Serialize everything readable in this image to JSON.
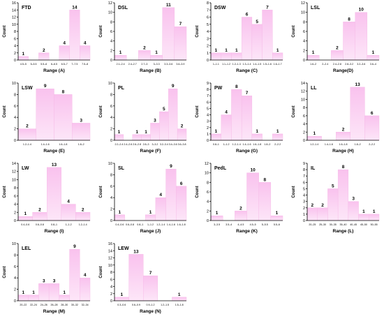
{
  "bar_color": "#f9c2ee",
  "bar_color_light": "#fde6f8",
  "chart_data": [
    {
      "type": "bar",
      "label": "FTD",
      "ylabel": "Count",
      "xlabel": "Range  (A)",
      "ylim": [
        0,
        16
      ],
      "yticks": [
        0,
        2,
        4,
        6,
        8,
        10,
        12,
        14,
        16
      ],
      "categories": [
        "4.5–5",
        "5–5.5",
        "5.5–6",
        "6–6.5",
        "6.5–7",
        "7–7.5",
        "7.5–8"
      ],
      "values": [
        1,
        0,
        2,
        0,
        4,
        14,
        4
      ]
    },
    {
      "type": "bar",
      "label": "DSL",
      "ylabel": "Count",
      "xlabel": "Range  (B)",
      "ylim": [
        0,
        12
      ],
      "yticks": [
        0,
        2,
        4,
        6,
        8,
        10,
        12
      ],
      "categories": [
        "2.1–2.4",
        "2.4–2.7",
        "2.7–3",
        "3–3.3",
        "3.3–3.6",
        "3.6–3.9"
      ],
      "values": [
        1,
        0,
        2,
        1,
        11,
        7
      ]
    },
    {
      "type": "bar",
      "label": "DSW",
      "ylabel": "Count",
      "xlabel": "Range  (C)",
      "ylim": [
        0,
        8
      ],
      "yticks": [
        0,
        1,
        2,
        3,
        4,
        5,
        6,
        7,
        8
      ],
      "categories": [
        "1–1.1",
        "1.1–1.2",
        "1.2–1.3",
        "1.3–1.4",
        "1.4–1.5",
        "1.5–1.6",
        "1.6–1.7"
      ],
      "values": [
        1,
        1,
        1,
        6,
        5,
        7,
        1
      ]
    },
    {
      "type": "bar",
      "label": "LSL",
      "ylabel": "Count",
      "xlabel": "Range(D)",
      "ylim": [
        0,
        12
      ],
      "yticks": [
        0,
        2,
        4,
        6,
        8,
        10,
        12
      ],
      "categories": [
        "1.6–2",
        "2–2.4",
        "2.4–2.8",
        "2.8–3.2",
        "3.2–3.6",
        "3.6–4"
      ],
      "values": [
        1,
        0,
        2,
        8,
        10,
        1
      ]
    },
    {
      "type": "bar",
      "label": "LSW",
      "ylabel": "Count",
      "xlabel": "Range  (E)",
      "ylim": [
        0,
        10
      ],
      "yticks": [
        0,
        2,
        4,
        6,
        8,
        10
      ],
      "categories": [
        "1.2–1.4",
        "1.4–1.6",
        "1.6–1.8",
        "1.8–2"
      ],
      "values": [
        2,
        9,
        8,
        3
      ]
    },
    {
      "type": "bar",
      "label": "PL",
      "ylabel": "Count",
      "xlabel": "Range  (F)",
      "ylim": [
        0,
        10
      ],
      "yticks": [
        0,
        2,
        4,
        6,
        8,
        10
      ],
      "categories": [
        "2.2–2.4",
        "2.4–2.6",
        "2.6–2.8",
        "2.8–3",
        "3–3.2",
        "3.2–3.4",
        "3.4–3.6",
        "3.6–3.8"
      ],
      "values": [
        1,
        0,
        1,
        1,
        3,
        5,
        9,
        2
      ]
    },
    {
      "type": "bar",
      "label": "PW",
      "ylabel": "Count",
      "xlabel": "Range  (G)",
      "ylim": [
        0,
        9
      ],
      "yticks": [
        0,
        1,
        2,
        3,
        4,
        5,
        6,
        7,
        8,
        9
      ],
      "categories": [
        "0.8–1",
        "1–1.2",
        "1.2–1.4",
        "1.4–1.6",
        "1.6–1.8",
        "1.8–2",
        "2–2.2"
      ],
      "values": [
        1,
        4,
        8,
        7,
        1,
        0,
        1
      ]
    },
    {
      "type": "bar",
      "label": "LL",
      "ylabel": "Count",
      "xlabel": "Range  (H)",
      "ylim": [
        0,
        14
      ],
      "yticks": [
        0,
        2,
        4,
        6,
        8,
        10,
        12,
        14
      ],
      "categories": [
        "1.2–1.4",
        "1.4–1.6",
        "1.6–1.8",
        "1.8–2",
        "2–2.2"
      ],
      "values": [
        1,
        0,
        2,
        13,
        6
      ]
    },
    {
      "type": "bar",
      "label": "LW",
      "ylabel": "Count",
      "xlabel": "Range  (I)",
      "ylim": [
        0,
        14
      ],
      "yticks": [
        0,
        2,
        4,
        6,
        8,
        10,
        12,
        14
      ],
      "categories": [
        "0.4–0.6",
        "0.6–0.8",
        "0.8–1",
        "1–1.2",
        "1.2–1.4"
      ],
      "values": [
        1,
        2,
        13,
        4,
        2
      ]
    },
    {
      "type": "bar",
      "label": "SL",
      "ylabel": "Count",
      "xlabel": "Range  (J)",
      "ylim": [
        0,
        10
      ],
      "yticks": [
        0,
        2,
        4,
        6,
        8,
        10
      ],
      "categories": [
        "0.4–0.6",
        "0.6–0.8",
        "0.8–1",
        "1–1.2",
        "1.2–1.4",
        "1.4–1.6",
        "1.6–1.8"
      ],
      "values": [
        1,
        0,
        0,
        1,
        4,
        9,
        6
      ]
    },
    {
      "type": "bar",
      "label": "PedL",
      "ylabel": "Count",
      "xlabel": "Range  (K)",
      "ylim": [
        0,
        12
      ],
      "yticks": [
        0,
        2,
        4,
        6,
        8,
        10,
        12
      ],
      "categories": [
        "3–3.5",
        "3.5–4",
        "4–4.5",
        "4.5–5",
        "5–5.5",
        "5.5–6"
      ],
      "values": [
        1,
        0,
        2,
        10,
        8,
        1
      ]
    },
    {
      "type": "bar",
      "label": "IL",
      "ylabel": "Count",
      "xlabel": "Range  (L)",
      "ylim": [
        0,
        9
      ],
      "yticks": [
        0,
        1,
        2,
        3,
        4,
        5,
        6,
        7,
        8,
        9
      ],
      "categories": [
        "20–25",
        "25–30",
        "30–35",
        "35–40",
        "40–45",
        "45–50",
        "50–55"
      ],
      "values": [
        2,
        2,
        5,
        8,
        3,
        1,
        1
      ]
    },
    {
      "type": "bar",
      "label": "LEL",
      "ylabel": "Count",
      "xlabel": "Range  (M)",
      "ylim": [
        0,
        10
      ],
      "yticks": [
        0,
        2,
        4,
        6,
        8,
        10
      ],
      "categories": [
        "20–22",
        "22–24",
        "24–26",
        "26–28",
        "28–30",
        "30–32",
        "32–34"
      ],
      "values": [
        1,
        1,
        3,
        3,
        1,
        9,
        4
      ]
    },
    {
      "type": "bar",
      "label": "LEW",
      "ylabel": "Count",
      "xlabel": "Range  (N)",
      "ylim": [
        0,
        16
      ],
      "yticks": [
        0,
        2,
        4,
        6,
        8,
        10,
        12,
        14,
        16
      ],
      "categories": [
        "0.3–0.6",
        "0.6–0.9",
        "0.9–1.2",
        "1.2–1.5",
        "1.5–1.8"
      ],
      "values": [
        1,
        13,
        7,
        0,
        1
      ]
    }
  ]
}
